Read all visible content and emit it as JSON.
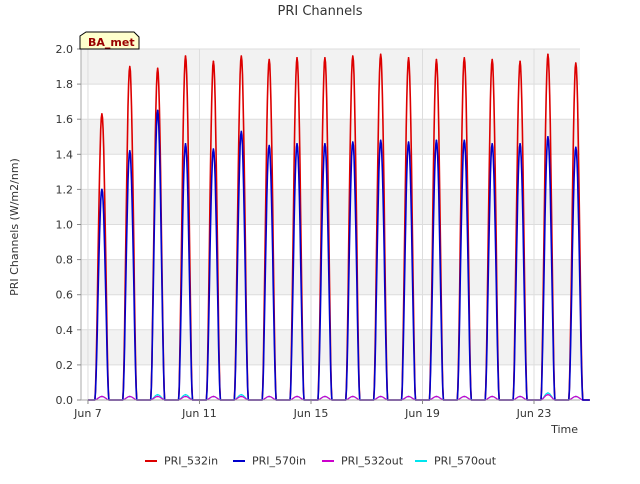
{
  "chart_data": {
    "type": "line",
    "title": "PRI Channels",
    "xlabel": "Time",
    "ylabel": "PRI Channels (W/m2/nm)",
    "site_label": "BA_met",
    "xlim": [
      6.75,
      24.65
    ],
    "ylim": [
      0,
      2.0
    ],
    "x_ticks": [
      7,
      11,
      15,
      19,
      23
    ],
    "x_tick_labels": [
      "Jun 7",
      "Jun 11",
      "Jun 15",
      "Jun 19",
      "Jun 23"
    ],
    "y_ticks": [
      0.0,
      0.2,
      0.4,
      0.6,
      0.8,
      1.0,
      1.2,
      1.4,
      1.6,
      1.8,
      2.0
    ],
    "y_tick_labels": [
      "0.0",
      "0.2",
      "0.4",
      "0.6",
      "0.8",
      "1.0",
      "1.2",
      "1.4",
      "1.6",
      "1.8",
      "2.0"
    ],
    "x_unit": "day of June",
    "days": [
      7,
      8,
      9,
      10,
      11,
      12,
      13,
      14,
      15,
      16,
      17,
      18,
      19,
      20,
      21,
      22,
      23,
      24
    ],
    "series": [
      {
        "name": "PRI_532in",
        "color": "#dd0000",
        "daily_peaks": [
          1.63,
          1.9,
          1.89,
          1.96,
          1.93,
          1.96,
          1.94,
          1.95,
          1.95,
          1.96,
          1.97,
          1.95,
          1.94,
          1.95,
          1.94,
          1.93,
          1.97,
          1.92
        ]
      },
      {
        "name": "PRI_570in",
        "color": "#0000cc",
        "daily_peaks": [
          1.2,
          1.42,
          1.65,
          1.46,
          1.43,
          1.53,
          1.45,
          1.46,
          1.46,
          1.47,
          1.48,
          1.47,
          1.48,
          1.48,
          1.46,
          1.46,
          1.5,
          1.44
        ]
      },
      {
        "name": "PRI_532out",
        "color": "#cc00cc",
        "daily_peaks": [
          0.02,
          0.02,
          0.02,
          0.02,
          0.02,
          0.02,
          0.02,
          0.02,
          0.02,
          0.02,
          0.02,
          0.02,
          0.02,
          0.02,
          0.02,
          0.02,
          0.03,
          0.02
        ]
      },
      {
        "name": "PRI_570out",
        "color": "#00e5ee",
        "daily_peaks": [
          0.02,
          0.02,
          0.03,
          0.03,
          0.02,
          0.03,
          0.02,
          0.02,
          0.02,
          0.02,
          0.02,
          0.02,
          0.02,
          0.02,
          0.02,
          0.02,
          0.04,
          0.02
        ]
      }
    ],
    "legend": {
      "placement": "bottom-center",
      "entries": [
        "PRI_532in",
        "PRI_570in",
        "PRI_532out",
        "PRI_570out"
      ]
    },
    "grid": true
  }
}
